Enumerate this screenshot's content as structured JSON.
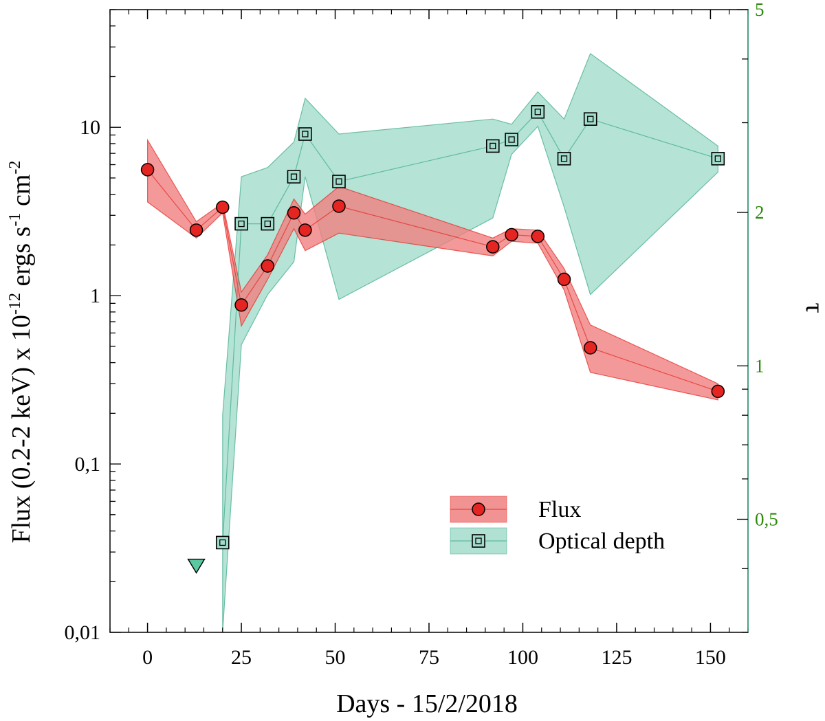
{
  "chart_data": {
    "type": "line",
    "xlabel": "Days - 15/2/2018",
    "ylabel_left": {
      "prefix": "Flux (0.2-2 keV) x 10",
      "exp1": "-12",
      "mid1": " ergs s",
      "exp2": "-1",
      "mid2": " cm",
      "exp3": "-2"
    },
    "ylabel_right": "τ",
    "xlim": [
      -10,
      160
    ],
    "ylim_left": [
      0.01,
      50
    ],
    "yscale_left": "log",
    "ylim_right": [
      0.3,
      5
    ],
    "yscale_right": "log",
    "x_ticks": [
      {
        "v": 0,
        "label": "0"
      },
      {
        "v": 25,
        "label": "25"
      },
      {
        "v": 50,
        "label": "50"
      },
      {
        "v": 75,
        "label": "75"
      },
      {
        "v": 100,
        "label": "100"
      },
      {
        "v": 125,
        "label": "125"
      },
      {
        "v": 150,
        "label": "150"
      }
    ],
    "y_left_ticks": [
      {
        "v": 0.01,
        "label": "0,01"
      },
      {
        "v": 0.1,
        "label": "0,1"
      },
      {
        "v": 1,
        "label": "1"
      },
      {
        "v": 10,
        "label": "10"
      }
    ],
    "y_right_ticks": [
      {
        "v": 0.5,
        "label": "0,5"
      },
      {
        "v": 1,
        "label": "1"
      },
      {
        "v": 2,
        "label": "2"
      },
      {
        "v": 5,
        "label": "5"
      }
    ],
    "legend_position": "bottom-right",
    "series": [
      {
        "name": "Flux",
        "axis": "left",
        "marker": "circle",
        "color": "#e52521",
        "band_color": "#f08080",
        "points": [
          {
            "x": 0,
            "y": 5.6,
            "lo": 3.6,
            "hi": 8.4
          },
          {
            "x": 13,
            "y": 2.45,
            "lo": 2.2,
            "hi": 2.75
          },
          {
            "x": 20,
            "y": 3.35,
            "lo": 3.1,
            "hi": 3.55
          },
          {
            "x": 25,
            "y": 0.88,
            "lo": 0.66,
            "hi": 1.05
          },
          {
            "x": 32,
            "y": 1.5,
            "lo": 1.25,
            "hi": 1.75
          },
          {
            "x": 39,
            "y": 3.1,
            "lo": 2.5,
            "hi": 3.75
          },
          {
            "x": 42,
            "y": 2.45,
            "lo": 1.85,
            "hi": 3.05
          },
          {
            "x": 51,
            "y": 3.4,
            "lo": 2.35,
            "hi": 4.45
          },
          {
            "x": 92,
            "y": 1.95,
            "lo": 1.72,
            "hi": 2.2
          },
          {
            "x": 97,
            "y": 2.3,
            "lo": 2.1,
            "hi": 2.5
          },
          {
            "x": 104,
            "y": 2.25,
            "lo": 2.05,
            "hi": 2.45
          },
          {
            "x": 111,
            "y": 1.25,
            "lo": 1.08,
            "hi": 1.45
          },
          {
            "x": 118,
            "y": 0.49,
            "lo": 0.35,
            "hi": 0.67
          },
          {
            "x": 152,
            "y": 0.27,
            "lo": 0.24,
            "hi": 0.3
          }
        ],
        "upper_limits": [
          {
            "x": 13,
            "y": 0.025
          }
        ]
      },
      {
        "name": "Optical depth",
        "axis": "right",
        "marker": "square",
        "color": "#3aaa88",
        "band_color": "#a3dccb",
        "points": [
          {
            "x": 20,
            "y": 0.45,
            "lo": 0.3,
            "hi": 0.8
          },
          {
            "x": 25,
            "y": 1.9,
            "lo": 1.1,
            "hi": 2.35
          },
          {
            "x": 32,
            "y": 1.9,
            "lo": 1.38,
            "hi": 2.45
          },
          {
            "x": 39,
            "y": 2.35,
            "lo": 1.6,
            "hi": 2.75
          },
          {
            "x": 42,
            "y": 2.85,
            "lo": 2.35,
            "hi": 3.35
          },
          {
            "x": 51,
            "y": 2.3,
            "lo": 1.35,
            "hi": 2.85
          },
          {
            "x": 92,
            "y": 2.7,
            "lo": 1.95,
            "hi": 3.05
          },
          {
            "x": 97,
            "y": 2.78,
            "lo": 2.6,
            "hi": 2.98
          },
          {
            "x": 104,
            "y": 3.15,
            "lo": 2.95,
            "hi": 3.45
          },
          {
            "x": 111,
            "y": 2.55,
            "lo": 2.05,
            "hi": 3.05
          },
          {
            "x": 118,
            "y": 3.05,
            "lo": 1.38,
            "hi": 4.1
          },
          {
            "x": 152,
            "y": 2.55,
            "lo": 2.4,
            "hi": 2.7
          }
        ]
      }
    ]
  }
}
